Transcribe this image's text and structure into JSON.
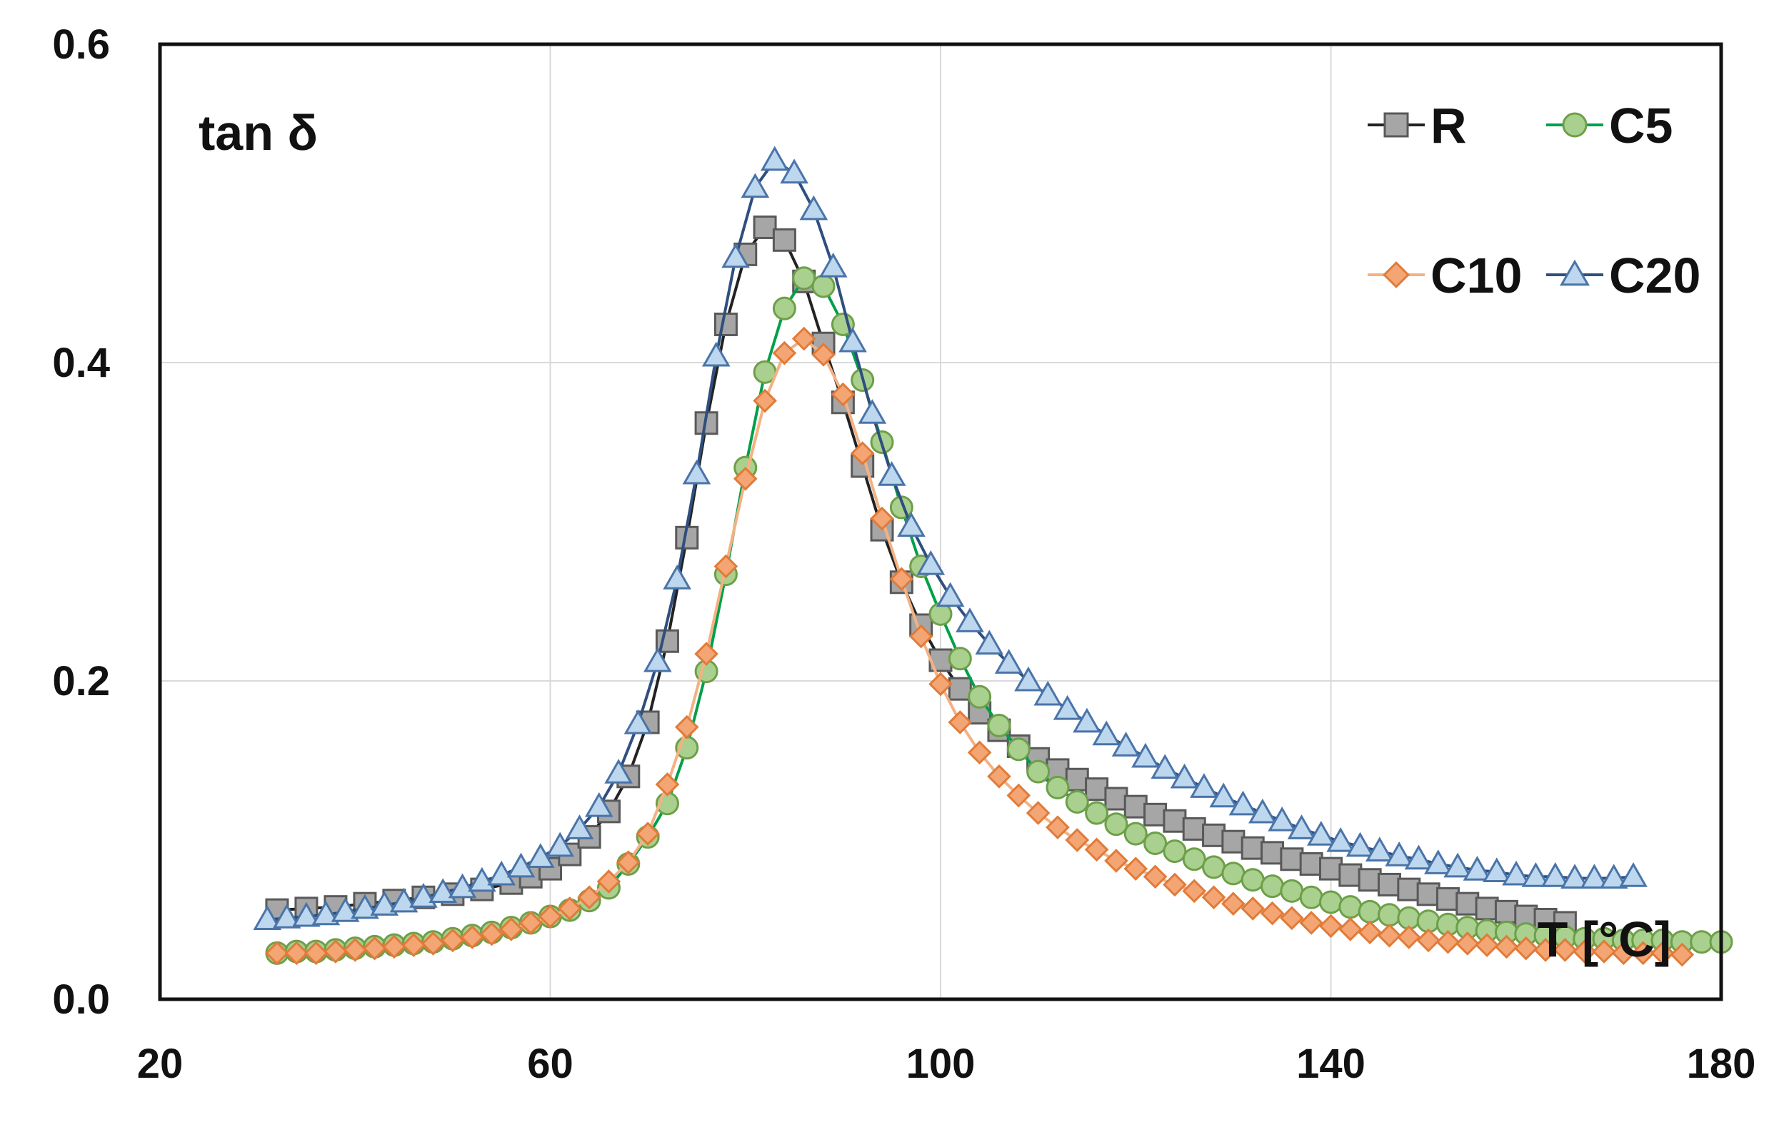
{
  "chart_data": {
    "type": "line",
    "title": "",
    "ylabel": "tan δ",
    "xlabel": "T [°C]",
    "xlim": [
      20,
      180
    ],
    "ylim": [
      0.0,
      0.6
    ],
    "xticks": [
      "20",
      "60",
      "100",
      "140",
      "180"
    ],
    "yticks": [
      "0.0",
      "0.2",
      "0.4",
      "0.6"
    ],
    "grid": true,
    "legend_position": "top-right",
    "series": [
      {
        "name": "R",
        "marker": "square",
        "line_color": "#222222",
        "fill": "#a6a6a6",
        "stroke": "#595959",
        "points": [
          [
            32,
            0.056
          ],
          [
            35,
            0.057
          ],
          [
            38,
            0.058
          ],
          [
            41,
            0.06
          ],
          [
            44,
            0.062
          ],
          [
            47,
            0.064
          ],
          [
            50,
            0.066
          ],
          [
            53,
            0.069
          ],
          [
            56,
            0.073
          ],
          [
            58,
            0.077
          ],
          [
            60,
            0.082
          ],
          [
            62,
            0.091
          ],
          [
            64,
            0.102
          ],
          [
            66,
            0.118
          ],
          [
            68,
            0.14
          ],
          [
            70,
            0.174
          ],
          [
            72,
            0.225
          ],
          [
            74,
            0.29
          ],
          [
            76,
            0.362
          ],
          [
            78,
            0.424
          ],
          [
            80,
            0.468
          ],
          [
            82,
            0.485
          ],
          [
            84,
            0.477
          ],
          [
            86,
            0.451
          ],
          [
            88,
            0.412
          ],
          [
            90,
            0.375
          ],
          [
            92,
            0.335
          ],
          [
            94,
            0.295
          ],
          [
            96,
            0.262
          ],
          [
            98,
            0.235
          ],
          [
            100,
            0.213
          ],
          [
            102,
            0.195
          ],
          [
            104,
            0.18
          ],
          [
            106,
            0.169
          ],
          [
            108,
            0.159
          ],
          [
            110,
            0.151
          ],
          [
            112,
            0.144
          ],
          [
            114,
            0.138
          ],
          [
            116,
            0.132
          ],
          [
            118,
            0.126
          ],
          [
            120,
            0.121
          ],
          [
            122,
            0.116
          ],
          [
            124,
            0.112
          ],
          [
            126,
            0.107
          ],
          [
            128,
            0.103
          ],
          [
            130,
            0.099
          ],
          [
            132,
            0.095
          ],
          [
            134,
            0.092
          ],
          [
            136,
            0.088
          ],
          [
            138,
            0.085
          ],
          [
            140,
            0.082
          ],
          [
            142,
            0.078
          ],
          [
            144,
            0.075
          ],
          [
            146,
            0.072
          ],
          [
            148,
            0.069
          ],
          [
            150,
            0.066
          ],
          [
            152,
            0.063
          ],
          [
            154,
            0.06
          ],
          [
            156,
            0.057
          ],
          [
            158,
            0.055
          ],
          [
            160,
            0.052
          ],
          [
            162,
            0.05
          ],
          [
            164,
            0.048
          ]
        ]
      },
      {
        "name": "C5",
        "marker": "circle",
        "line_color": "#00a04a",
        "fill": "#a9d08e",
        "stroke": "#6d9f48",
        "points": [
          [
            32,
            0.029
          ],
          [
            34,
            0.03
          ],
          [
            36,
            0.03
          ],
          [
            38,
            0.031
          ],
          [
            40,
            0.032
          ],
          [
            42,
            0.033
          ],
          [
            44,
            0.034
          ],
          [
            46,
            0.035
          ],
          [
            48,
            0.036
          ],
          [
            50,
            0.038
          ],
          [
            52,
            0.04
          ],
          [
            54,
            0.042
          ],
          [
            56,
            0.045
          ],
          [
            58,
            0.048
          ],
          [
            60,
            0.052
          ],
          [
            62,
            0.056
          ],
          [
            64,
            0.062
          ],
          [
            66,
            0.07
          ],
          [
            68,
            0.085
          ],
          [
            70,
            0.102
          ],
          [
            72,
            0.123
          ],
          [
            74,
            0.158
          ],
          [
            76,
            0.206
          ],
          [
            78,
            0.267
          ],
          [
            80,
            0.334
          ],
          [
            82,
            0.394
          ],
          [
            84,
            0.434
          ],
          [
            86,
            0.453
          ],
          [
            88,
            0.448
          ],
          [
            90,
            0.424
          ],
          [
            92,
            0.389
          ],
          [
            94,
            0.35
          ],
          [
            96,
            0.309
          ],
          [
            98,
            0.272
          ],
          [
            100,
            0.242
          ],
          [
            102,
            0.214
          ],
          [
            104,
            0.19
          ],
          [
            106,
            0.172
          ],
          [
            108,
            0.157
          ],
          [
            110,
            0.143
          ],
          [
            112,
            0.133
          ],
          [
            114,
            0.124
          ],
          [
            116,
            0.117
          ],
          [
            118,
            0.11
          ],
          [
            120,
            0.104
          ],
          [
            122,
            0.098
          ],
          [
            124,
            0.093
          ],
          [
            126,
            0.088
          ],
          [
            128,
            0.083
          ],
          [
            130,
            0.079
          ],
          [
            132,
            0.075
          ],
          [
            134,
            0.071
          ],
          [
            136,
            0.068
          ],
          [
            138,
            0.064
          ],
          [
            140,
            0.061
          ],
          [
            142,
            0.058
          ],
          [
            144,
            0.055
          ],
          [
            146,
            0.053
          ],
          [
            148,
            0.051
          ],
          [
            150,
            0.049
          ],
          [
            152,
            0.047
          ],
          [
            154,
            0.045
          ],
          [
            156,
            0.043
          ],
          [
            158,
            0.042
          ],
          [
            160,
            0.041
          ],
          [
            162,
            0.04
          ],
          [
            164,
            0.039
          ],
          [
            166,
            0.038
          ],
          [
            168,
            0.038
          ],
          [
            170,
            0.037
          ],
          [
            172,
            0.037
          ],
          [
            174,
            0.037
          ],
          [
            176,
            0.036
          ],
          [
            178,
            0.036
          ],
          [
            180,
            0.036
          ]
        ]
      },
      {
        "name": "C10",
        "marker": "diamond",
        "line_color": "#f4b183",
        "fill": "#f4a574",
        "stroke": "#e07b39",
        "points": [
          [
            32,
            0.029
          ],
          [
            34,
            0.029
          ],
          [
            36,
            0.029
          ],
          [
            38,
            0.03
          ],
          [
            40,
            0.031
          ],
          [
            42,
            0.032
          ],
          [
            44,
            0.033
          ],
          [
            46,
            0.034
          ],
          [
            48,
            0.035
          ],
          [
            50,
            0.037
          ],
          [
            52,
            0.039
          ],
          [
            54,
            0.041
          ],
          [
            56,
            0.044
          ],
          [
            58,
            0.048
          ],
          [
            60,
            0.052
          ],
          [
            62,
            0.057
          ],
          [
            64,
            0.064
          ],
          [
            66,
            0.074
          ],
          [
            68,
            0.086
          ],
          [
            70,
            0.104
          ],
          [
            72,
            0.135
          ],
          [
            74,
            0.171
          ],
          [
            76,
            0.217
          ],
          [
            78,
            0.272
          ],
          [
            80,
            0.327
          ],
          [
            82,
            0.376
          ],
          [
            84,
            0.406
          ],
          [
            86,
            0.415
          ],
          [
            88,
            0.405
          ],
          [
            90,
            0.38
          ],
          [
            92,
            0.343
          ],
          [
            94,
            0.302
          ],
          [
            96,
            0.264
          ],
          [
            98,
            0.228
          ],
          [
            100,
            0.198
          ],
          [
            102,
            0.174
          ],
          [
            104,
            0.155
          ],
          [
            106,
            0.14
          ],
          [
            108,
            0.128
          ],
          [
            110,
            0.117
          ],
          [
            112,
            0.108
          ],
          [
            114,
            0.1
          ],
          [
            116,
            0.094
          ],
          [
            118,
            0.087
          ],
          [
            120,
            0.082
          ],
          [
            122,
            0.077
          ],
          [
            124,
            0.072
          ],
          [
            126,
            0.068
          ],
          [
            128,
            0.064
          ],
          [
            130,
            0.06
          ],
          [
            132,
            0.057
          ],
          [
            134,
            0.054
          ],
          [
            136,
            0.051
          ],
          [
            138,
            0.048
          ],
          [
            140,
            0.046
          ],
          [
            142,
            0.044
          ],
          [
            144,
            0.042
          ],
          [
            146,
            0.04
          ],
          [
            148,
            0.039
          ],
          [
            150,
            0.037
          ],
          [
            152,
            0.036
          ],
          [
            154,
            0.035
          ],
          [
            156,
            0.034
          ],
          [
            158,
            0.033
          ],
          [
            160,
            0.032
          ],
          [
            162,
            0.031
          ],
          [
            164,
            0.031
          ],
          [
            166,
            0.03
          ],
          [
            168,
            0.03
          ],
          [
            170,
            0.029
          ],
          [
            172,
            0.029
          ],
          [
            174,
            0.029
          ],
          [
            176,
            0.028
          ]
        ]
      },
      {
        "name": "C20",
        "marker": "triangle",
        "line_color": "#2f4f7f",
        "fill": "#bdd7ee",
        "stroke": "#4a74a8",
        "points": [
          [
            31,
            0.05
          ],
          [
            33,
            0.051
          ],
          [
            35,
            0.052
          ],
          [
            37,
            0.053
          ],
          [
            39,
            0.055
          ],
          [
            41,
            0.057
          ],
          [
            43,
            0.059
          ],
          [
            45,
            0.061
          ],
          [
            47,
            0.064
          ],
          [
            49,
            0.067
          ],
          [
            51,
            0.07
          ],
          [
            53,
            0.074
          ],
          [
            55,
            0.078
          ],
          [
            57,
            0.083
          ],
          [
            59,
            0.089
          ],
          [
            61,
            0.096
          ],
          [
            63,
            0.107
          ],
          [
            65,
            0.121
          ],
          [
            67,
            0.142
          ],
          [
            69,
            0.173
          ],
          [
            71,
            0.212
          ],
          [
            73,
            0.264
          ],
          [
            75,
            0.33
          ],
          [
            77,
            0.404
          ],
          [
            79,
            0.466
          ],
          [
            81,
            0.51
          ],
          [
            83,
            0.527
          ],
          [
            85,
            0.519
          ],
          [
            87,
            0.496
          ],
          [
            89,
            0.46
          ],
          [
            91,
            0.413
          ],
          [
            93,
            0.368
          ],
          [
            95,
            0.329
          ],
          [
            97,
            0.297
          ],
          [
            99,
            0.273
          ],
          [
            101,
            0.253
          ],
          [
            103,
            0.237
          ],
          [
            105,
            0.223
          ],
          [
            107,
            0.211
          ],
          [
            109,
            0.2
          ],
          [
            111,
            0.191
          ],
          [
            113,
            0.182
          ],
          [
            115,
            0.174
          ],
          [
            117,
            0.166
          ],
          [
            119,
            0.159
          ],
          [
            121,
            0.152
          ],
          [
            123,
            0.145
          ],
          [
            125,
            0.139
          ],
          [
            127,
            0.133
          ],
          [
            129,
            0.127
          ],
          [
            131,
            0.122
          ],
          [
            133,
            0.117
          ],
          [
            135,
            0.112
          ],
          [
            137,
            0.107
          ],
          [
            139,
            0.103
          ],
          [
            141,
            0.099
          ],
          [
            143,
            0.096
          ],
          [
            145,
            0.093
          ],
          [
            147,
            0.09
          ],
          [
            149,
            0.088
          ],
          [
            151,
            0.085
          ],
          [
            153,
            0.083
          ],
          [
            155,
            0.081
          ],
          [
            157,
            0.08
          ],
          [
            159,
            0.078
          ],
          [
            161,
            0.077
          ],
          [
            163,
            0.077
          ],
          [
            165,
            0.076
          ],
          [
            167,
            0.076
          ],
          [
            169,
            0.076
          ],
          [
            171,
            0.077
          ]
        ]
      }
    ]
  }
}
